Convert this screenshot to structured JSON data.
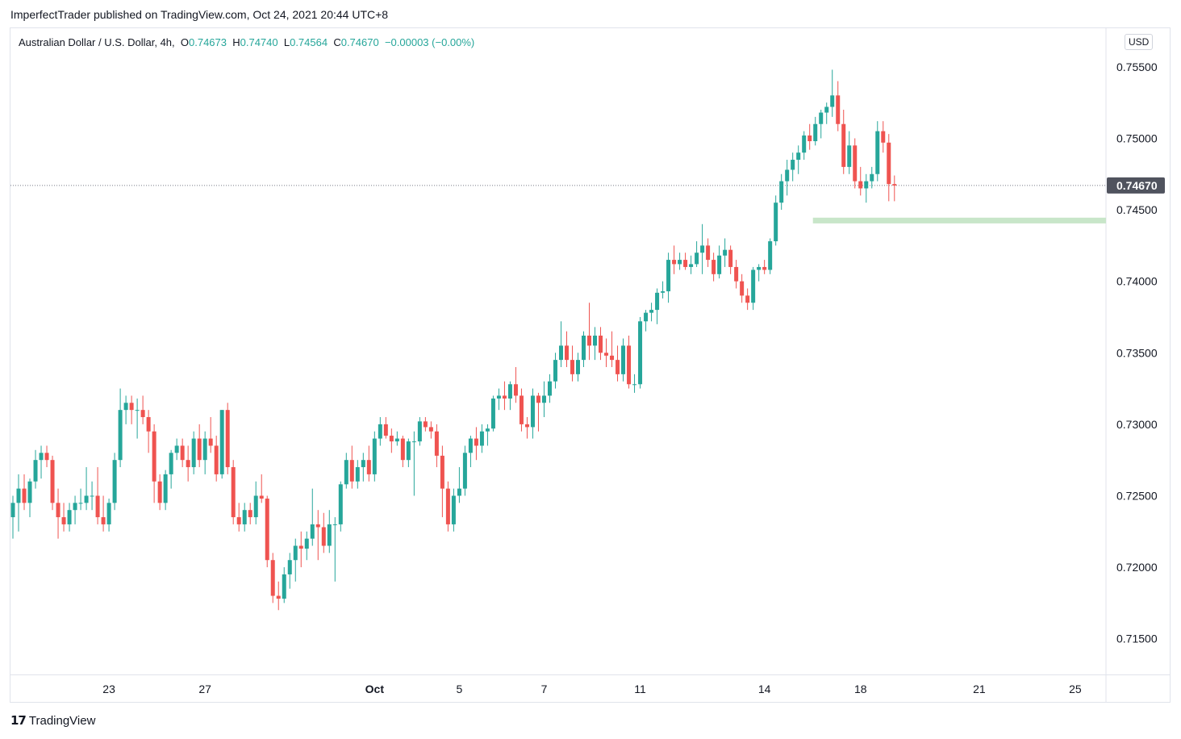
{
  "header": {
    "published": "ImperfectTrader published on TradingView.com, Oct 24, 2021 20:44 UTC+8"
  },
  "legend": {
    "symbol": "Australian Dollar / U.S. Dollar, 4h,",
    "o_label": "O",
    "o": "0.74673",
    "h_label": "H",
    "h": "0.74740",
    "l_label": "L",
    "l": "0.74564",
    "c_label": "C",
    "c": "0.74670",
    "change": "−0.00003 (−0.00%)"
  },
  "currency": "USD",
  "last_price_label": "0.74670",
  "footer": {
    "brand": "TradingView"
  },
  "colors": {
    "up": "#26a69a",
    "down": "#ef5350",
    "zone": "#c8e6c9"
  },
  "chart_data": {
    "type": "candlestick",
    "ylim": [
      0.7125,
      0.7577
    ],
    "yticks": [
      "0.75500",
      "0.75000",
      "0.74500",
      "0.74000",
      "0.73500",
      "0.73000",
      "0.72500",
      "0.72000",
      "0.71500"
    ],
    "ytick_values": [
      0.755,
      0.75,
      0.745,
      0.74,
      0.735,
      0.73,
      0.725,
      0.72,
      0.715
    ],
    "xticks": [
      {
        "label": "23",
        "bar": 17
      },
      {
        "label": "27",
        "bar": 34
      },
      {
        "label": "Oct",
        "bar": 64,
        "bold": true
      },
      {
        "label": "5",
        "bar": 79
      },
      {
        "label": "7",
        "bar": 94
      },
      {
        "label": "11",
        "bar": 111
      },
      {
        "label": "14",
        "bar": 133
      },
      {
        "label": "18",
        "bar": 150
      },
      {
        "label": "21",
        "bar": 171
      },
      {
        "label": "25",
        "bar": 188
      }
    ],
    "current_price": 0.7467,
    "support_zone": {
      "from_bar": 142,
      "high": 0.74445,
      "low": 0.74405
    },
    "ohlc": [
      [
        0.7235,
        0.725,
        0.722,
        0.7245
      ],
      [
        0.7245,
        0.7265,
        0.7225,
        0.7255
      ],
      [
        0.7255,
        0.7265,
        0.724,
        0.7245
      ],
      [
        0.7245,
        0.7262,
        0.7235,
        0.726
      ],
      [
        0.726,
        0.7282,
        0.7255,
        0.7275
      ],
      [
        0.7275,
        0.7285,
        0.7262,
        0.728
      ],
      [
        0.728,
        0.7285,
        0.727,
        0.7275
      ],
      [
        0.7275,
        0.7278,
        0.724,
        0.7245
      ],
      [
        0.7245,
        0.7255,
        0.722,
        0.7235
      ],
      [
        0.7235,
        0.7245,
        0.7225,
        0.723
      ],
      [
        0.723,
        0.7245,
        0.7225,
        0.724
      ],
      [
        0.724,
        0.725,
        0.723,
        0.7245
      ],
      [
        0.7245,
        0.7255,
        0.724,
        0.7245
      ],
      [
        0.7245,
        0.727,
        0.724,
        0.725
      ],
      [
        0.725,
        0.726,
        0.724,
        0.725
      ],
      [
        0.725,
        0.727,
        0.723,
        0.7235
      ],
      [
        0.7235,
        0.725,
        0.7225,
        0.723
      ],
      [
        0.723,
        0.7248,
        0.7225,
        0.7245
      ],
      [
        0.7245,
        0.728,
        0.724,
        0.7275
      ],
      [
        0.7275,
        0.7325,
        0.727,
        0.731
      ],
      [
        0.731,
        0.732,
        0.73,
        0.7315
      ],
      [
        0.7315,
        0.732,
        0.73,
        0.731
      ],
      [
        0.731,
        0.7318,
        0.729,
        0.731
      ],
      [
        0.731,
        0.732,
        0.73,
        0.7305
      ],
      [
        0.7305,
        0.731,
        0.728,
        0.7295
      ],
      [
        0.7295,
        0.73,
        0.7245,
        0.726
      ],
      [
        0.726,
        0.7265,
        0.724,
        0.7245
      ],
      [
        0.7245,
        0.7268,
        0.724,
        0.7265
      ],
      [
        0.7265,
        0.7282,
        0.7255,
        0.728
      ],
      [
        0.728,
        0.729,
        0.7275,
        0.7285
      ],
      [
        0.7285,
        0.729,
        0.727,
        0.7275
      ],
      [
        0.7275,
        0.7285,
        0.726,
        0.727
      ],
      [
        0.727,
        0.7295,
        0.7265,
        0.729
      ],
      [
        0.729,
        0.73,
        0.727,
        0.7275
      ],
      [
        0.7275,
        0.7295,
        0.7265,
        0.729
      ],
      [
        0.729,
        0.7305,
        0.728,
        0.7285
      ],
      [
        0.7285,
        0.7292,
        0.726,
        0.7265
      ],
      [
        0.7265,
        0.731,
        0.7262,
        0.731
      ],
      [
        0.731,
        0.7315,
        0.7265,
        0.727
      ],
      [
        0.727,
        0.7275,
        0.723,
        0.7235
      ],
      [
        0.7235,
        0.7245,
        0.7225,
        0.723
      ],
      [
        0.723,
        0.7245,
        0.7225,
        0.724
      ],
      [
        0.724,
        0.7245,
        0.723,
        0.7235
      ],
      [
        0.7235,
        0.726,
        0.723,
        0.725
      ],
      [
        0.725,
        0.7265,
        0.7245,
        0.7248
      ],
      [
        0.7248,
        0.725,
        0.72,
        0.7205
      ],
      [
        0.7205,
        0.721,
        0.7175,
        0.718
      ],
      [
        0.718,
        0.719,
        0.717,
        0.7178
      ],
      [
        0.7178,
        0.72,
        0.7175,
        0.7195
      ],
      [
        0.7195,
        0.721,
        0.7185,
        0.7205
      ],
      [
        0.7205,
        0.722,
        0.719,
        0.7215
      ],
      [
        0.7215,
        0.7225,
        0.72,
        0.7213
      ],
      [
        0.7213,
        0.7225,
        0.7205,
        0.722
      ],
      [
        0.722,
        0.7255,
        0.7215,
        0.723
      ],
      [
        0.723,
        0.724,
        0.7205,
        0.7228
      ],
      [
        0.7228,
        0.7238,
        0.721,
        0.7215
      ],
      [
        0.7215,
        0.724,
        0.721,
        0.723
      ],
      [
        0.723,
        0.7235,
        0.719,
        0.723
      ],
      [
        0.723,
        0.726,
        0.7225,
        0.7258
      ],
      [
        0.7258,
        0.728,
        0.7255,
        0.7275
      ],
      [
        0.7275,
        0.7285,
        0.7255,
        0.726
      ],
      [
        0.726,
        0.7275,
        0.7255,
        0.727
      ],
      [
        0.727,
        0.728,
        0.726,
        0.7275
      ],
      [
        0.7275,
        0.7285,
        0.726,
        0.7265
      ],
      [
        0.7265,
        0.7295,
        0.726,
        0.729
      ],
      [
        0.729,
        0.7305,
        0.7285,
        0.73
      ],
      [
        0.73,
        0.7305,
        0.729,
        0.7292
      ],
      [
        0.7292,
        0.7297,
        0.728,
        0.7288
      ],
      [
        0.7288,
        0.7295,
        0.7285,
        0.729
      ],
      [
        0.729,
        0.7292,
        0.727,
        0.7275
      ],
      [
        0.7275,
        0.729,
        0.727,
        0.7288
      ],
      [
        0.7288,
        0.7295,
        0.725,
        0.7288
      ],
      [
        0.7288,
        0.7305,
        0.7285,
        0.7302
      ],
      [
        0.7302,
        0.7305,
        0.7295,
        0.7298
      ],
      [
        0.7298,
        0.7302,
        0.729,
        0.7295
      ],
      [
        0.7295,
        0.73,
        0.727,
        0.7278
      ],
      [
        0.7278,
        0.7285,
        0.7235,
        0.7255
      ],
      [
        0.7255,
        0.726,
        0.7225,
        0.723
      ],
      [
        0.723,
        0.7255,
        0.7225,
        0.725
      ],
      [
        0.725,
        0.727,
        0.7245,
        0.7255
      ],
      [
        0.7255,
        0.7285,
        0.725,
        0.728
      ],
      [
        0.728,
        0.7292,
        0.727,
        0.729
      ],
      [
        0.729,
        0.7298,
        0.7275,
        0.7285
      ],
      [
        0.7285,
        0.73,
        0.728,
        0.7295
      ],
      [
        0.7295,
        0.73,
        0.7285,
        0.7297
      ],
      [
        0.7297,
        0.732,
        0.7295,
        0.7318
      ],
      [
        0.7318,
        0.7325,
        0.731,
        0.732
      ],
      [
        0.732,
        0.733,
        0.731,
        0.7318
      ],
      [
        0.7318,
        0.733,
        0.731,
        0.7328
      ],
      [
        0.7328,
        0.734,
        0.7315,
        0.732
      ],
      [
        0.732,
        0.7325,
        0.7295,
        0.73
      ],
      [
        0.73,
        0.7305,
        0.729,
        0.7298
      ],
      [
        0.7298,
        0.7325,
        0.729,
        0.732
      ],
      [
        0.732,
        0.7322,
        0.7295,
        0.7315
      ],
      [
        0.7315,
        0.733,
        0.7305,
        0.732
      ],
      [
        0.732,
        0.7335,
        0.7315,
        0.733
      ],
      [
        0.733,
        0.735,
        0.7325,
        0.7345
      ],
      [
        0.7345,
        0.7372,
        0.734,
        0.7355
      ],
      [
        0.7355,
        0.7365,
        0.734,
        0.7345
      ],
      [
        0.7345,
        0.7355,
        0.733,
        0.7335
      ],
      [
        0.7335,
        0.735,
        0.733,
        0.7345
      ],
      [
        0.7345,
        0.7365,
        0.734,
        0.7362
      ],
      [
        0.7362,
        0.7385,
        0.7345,
        0.7355
      ],
      [
        0.7355,
        0.7368,
        0.7345,
        0.7362
      ],
      [
        0.7362,
        0.7368,
        0.7345,
        0.735
      ],
      [
        0.735,
        0.736,
        0.734,
        0.7348
      ],
      [
        0.7348,
        0.7365,
        0.734,
        0.7345
      ],
      [
        0.7345,
        0.7355,
        0.733,
        0.7335
      ],
      [
        0.7335,
        0.736,
        0.733,
        0.7355
      ],
      [
        0.7355,
        0.7362,
        0.7325,
        0.7328
      ],
      [
        0.7328,
        0.7335,
        0.7322,
        0.7328
      ],
      [
        0.7328,
        0.7375,
        0.7325,
        0.7372
      ],
      [
        0.7372,
        0.738,
        0.7365,
        0.7378
      ],
      [
        0.7378,
        0.7385,
        0.7372,
        0.738
      ],
      [
        0.738,
        0.7395,
        0.737,
        0.7392
      ],
      [
        0.7392,
        0.74,
        0.7388,
        0.7393
      ],
      [
        0.7393,
        0.742,
        0.7385,
        0.7415
      ],
      [
        0.7415,
        0.7425,
        0.7405,
        0.7412
      ],
      [
        0.7412,
        0.742,
        0.7408,
        0.7415
      ],
      [
        0.7415,
        0.742,
        0.7408,
        0.741
      ],
      [
        0.741,
        0.7418,
        0.7405,
        0.7412
      ],
      [
        0.7412,
        0.7428,
        0.741,
        0.742
      ],
      [
        0.742,
        0.744,
        0.7405,
        0.7425
      ],
      [
        0.7425,
        0.743,
        0.741,
        0.7415
      ],
      [
        0.7415,
        0.742,
        0.74,
        0.7405
      ],
      [
        0.7405,
        0.7425,
        0.7402,
        0.7418
      ],
      [
        0.7418,
        0.743,
        0.741,
        0.7422
      ],
      [
        0.7422,
        0.7425,
        0.7405,
        0.741
      ],
      [
        0.741,
        0.7415,
        0.7395,
        0.74
      ],
      [
        0.74,
        0.7405,
        0.7385,
        0.739
      ],
      [
        0.739,
        0.7395,
        0.738,
        0.7385
      ],
      [
        0.7385,
        0.741,
        0.738,
        0.7408
      ],
      [
        0.7408,
        0.7412,
        0.74,
        0.741
      ],
      [
        0.741,
        0.7415,
        0.7405,
        0.7408
      ],
      [
        0.7408,
        0.743,
        0.7405,
        0.7428
      ],
      [
        0.7428,
        0.746,
        0.7425,
        0.7455
      ],
      [
        0.7455,
        0.7475,
        0.745,
        0.747
      ],
      [
        0.747,
        0.7485,
        0.746,
        0.7478
      ],
      [
        0.7478,
        0.749,
        0.747,
        0.7485
      ],
      [
        0.7485,
        0.7495,
        0.7475,
        0.749
      ],
      [
        0.749,
        0.7505,
        0.7485,
        0.7502
      ],
      [
        0.7502,
        0.751,
        0.7492,
        0.7498
      ],
      [
        0.7498,
        0.7515,
        0.7495,
        0.751
      ],
      [
        0.751,
        0.752,
        0.75,
        0.7518
      ],
      [
        0.7518,
        0.7525,
        0.751,
        0.7522
      ],
      [
        0.7522,
        0.7548,
        0.7515,
        0.753
      ],
      [
        0.753,
        0.754,
        0.7505,
        0.751
      ],
      [
        0.751,
        0.752,
        0.7475,
        0.748
      ],
      [
        0.748,
        0.7505,
        0.7475,
        0.7495
      ],
      [
        0.7495,
        0.75,
        0.7465,
        0.747
      ],
      [
        0.747,
        0.748,
        0.746,
        0.7465
      ],
      [
        0.7465,
        0.7475,
        0.7455,
        0.747
      ],
      [
        0.747,
        0.748,
        0.7465,
        0.7475
      ],
      [
        0.7475,
        0.7512,
        0.747,
        0.7505
      ],
      [
        0.7505,
        0.7512,
        0.749,
        0.7497
      ],
      [
        0.7497,
        0.7503,
        0.7456,
        0.7468
      ],
      [
        0.7468,
        0.7474,
        0.7456,
        0.7467
      ]
    ]
  }
}
